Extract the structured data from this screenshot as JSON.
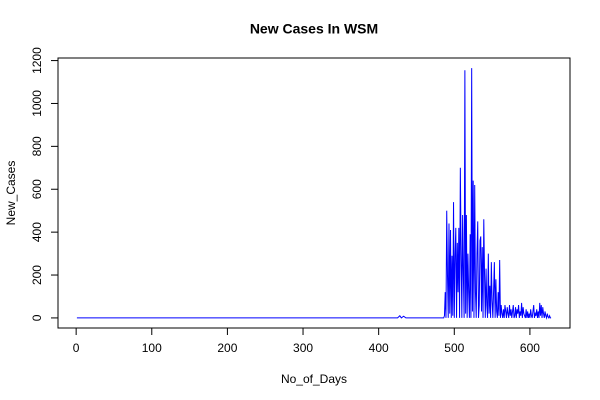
{
  "chart_data": {
    "type": "line",
    "title": "New Cases In WSM",
    "x_label": "No_of_Days",
    "y_label": "New_Cases",
    "xlim": [
      -24,
      653
    ],
    "ylim": [
      -47,
      1212
    ],
    "xticks": [
      0,
      100,
      200,
      300,
      400,
      500,
      600
    ],
    "yticks": [
      0,
      200,
      400,
      600,
      800,
      1000,
      1200
    ],
    "series": [
      {
        "color": "#0000ff",
        "x": [
          1,
          100,
          200,
          300,
          400,
          425,
          428,
          430,
          433,
          436,
          440,
          480,
          485,
          486,
          487,
          488,
          489,
          490,
          491,
          492,
          493,
          494,
          495,
          496,
          497,
          498,
          499,
          500,
          501,
          502,
          503,
          504,
          505,
          506,
          507,
          508,
          509,
          510,
          511,
          512,
          513,
          514,
          515,
          516,
          517,
          518,
          519,
          520,
          521,
          522,
          523,
          524,
          525,
          526,
          527,
          528,
          529,
          530,
          531,
          532,
          533,
          534,
          535,
          536,
          537,
          538,
          539,
          540,
          541,
          542,
          543,
          544,
          545,
          546,
          547,
          548,
          549,
          550,
          551,
          552,
          553,
          554,
          555,
          556,
          557,
          558,
          559,
          560,
          561,
          562,
          563,
          564,
          565,
          566,
          567,
          568,
          569,
          570,
          571,
          572,
          573,
          574,
          575,
          576,
          577,
          578,
          579,
          580,
          581,
          582,
          583,
          584,
          585,
          586,
          587,
          588,
          589,
          590,
          591,
          592,
          593,
          594,
          595,
          596,
          597,
          598,
          599,
          600,
          601,
          602,
          603,
          604,
          605,
          606,
          607,
          608,
          609,
          610,
          611,
          612,
          613,
          614,
          615,
          616,
          617,
          618,
          619,
          620,
          621,
          622,
          623,
          624,
          625,
          626,
          627,
          628
        ],
        "values": [
          0,
          0,
          0,
          0,
          0,
          0,
          10,
          0,
          8,
          0,
          0,
          0,
          0,
          0,
          10,
          120,
          0,
          500,
          200,
          0,
          440,
          20,
          410,
          0,
          290,
          10,
          540,
          0,
          290,
          420,
          0,
          350,
          120,
          420,
          0,
          700,
          300,
          0,
          480,
          200,
          0,
          1155,
          20,
          480,
          0,
          300,
          120,
          0,
          390,
          0,
          1165,
          30,
          640,
          0,
          620,
          120,
          0,
          300,
          450,
          0,
          60,
          360,
          380,
          30,
          330,
          0,
          460,
          200,
          0,
          230,
          60,
          0,
          300,
          20,
          150,
          0,
          260,
          80,
          0,
          130,
          260,
          0,
          180,
          30,
          0,
          120,
          10,
          270,
          0,
          60,
          20,
          0,
          40,
          0,
          60,
          30,
          0,
          50,
          20,
          0,
          60,
          10,
          40,
          0,
          30,
          60,
          0,
          10,
          50,
          0,
          40,
          20,
          60,
          0,
          30,
          10,
          70,
          0,
          50,
          20,
          10,
          0,
          40,
          0,
          30,
          0,
          20,
          0,
          40,
          10,
          0,
          30,
          60,
          0,
          20,
          10,
          40,
          0,
          30,
          0,
          70,
          10,
          60,
          0,
          50,
          20,
          0,
          30,
          10,
          0,
          20,
          5,
          0,
          10,
          0,
          0
        ]
      }
    ]
  }
}
